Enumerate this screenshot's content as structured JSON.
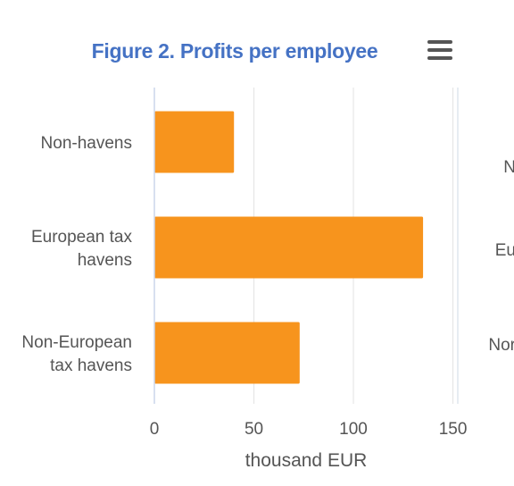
{
  "chart_data": {
    "type": "bar",
    "orientation": "horizontal",
    "title": "Figure 2. Profits per employee",
    "categories": [
      [
        "Non-havens"
      ],
      [
        "European tax",
        "havens"
      ],
      [
        "Non-European",
        "tax havens"
      ]
    ],
    "values": [
      40,
      135,
      73
    ],
    "xlabel": "thousand EUR",
    "xlim": [
      0,
      152
    ],
    "ticks": [
      "0",
      "50",
      "100",
      "150"
    ],
    "tick_values": [
      0,
      50,
      100,
      150
    ],
    "bar_color": "#f7941d",
    "grid": true
  },
  "menu": {
    "icon": "hamburger-menu-icon"
  },
  "partial_chart": {
    "clipped_labels": [
      "N",
      "Eu",
      "Nor"
    ]
  }
}
